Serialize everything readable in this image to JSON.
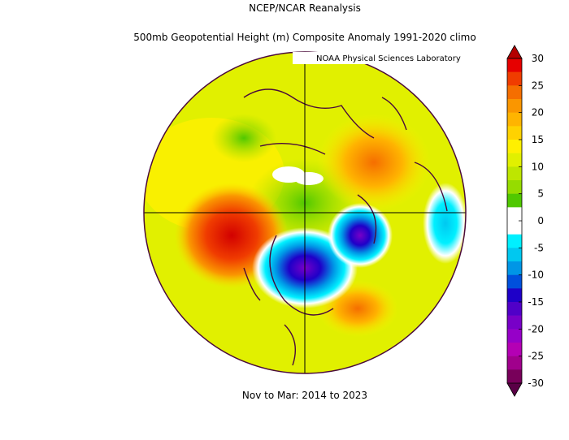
{
  "title": "NCEP/NCAR Reanalysis",
  "subtitle": "500mb Geopotential Height (m) Composite Anomaly 1991-2020 climo",
  "source": "NOAA Physical Sciences Laboratory",
  "footer": "Nov to Mar: 2014 to 2023",
  "colorbar": {
    "ticks": [
      30,
      25,
      20,
      15,
      10,
      5,
      0,
      -5,
      -10,
      -15,
      -20,
      -25,
      -30
    ],
    "colors": [
      "#e60000",
      "#f03c00",
      "#f56e00",
      "#fa9600",
      "#ffb400",
      "#ffd200",
      "#fff000",
      "#e1f000",
      "#bee600",
      "#96dc00",
      "#50c800",
      "#ffffff",
      "#ffffff",
      "#00f0ff",
      "#00c8f0",
      "#0096e6",
      "#0050dc",
      "#1e00c8",
      "#5000c8",
      "#7800c8",
      "#9600c8",
      "#b400b4",
      "#a0008c",
      "#78005a"
    ],
    "over_color": "#b40000",
    "under_color": "#5a0046"
  }
}
